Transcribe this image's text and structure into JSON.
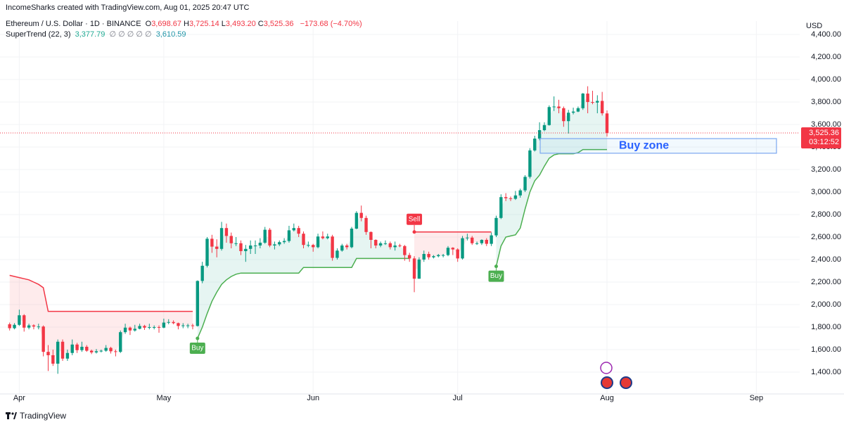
{
  "header": {
    "attribution": "IncomeSharks created with TradingView.com, Aug 01, 2025 20:47 UTC",
    "symbol": "Ethereum / U.S. Dollar · 1D · BINANCE",
    "ohlc": [
      {
        "key": "O",
        "value": "3,698.67"
      },
      {
        "key": "H",
        "value": "3,725.14"
      },
      {
        "key": "L",
        "value": "3,493.20"
      },
      {
        "key": "C",
        "value": "3,525.36"
      }
    ],
    "change": "−173.68 (−4.70%)",
    "indicator": "SuperTrend (22, 3)",
    "indicator_values": [
      "3,377.79",
      "∅ ∅ ∅ ∅ ∅",
      "3,610.59"
    ]
  },
  "chart_data": {
    "type": "candlestick",
    "currency": "USD",
    "up_color": "#089981",
    "down_color": "#f23645",
    "open": [
      1825,
      1790,
      1820,
      1905,
      1795,
      1815,
      1805,
      1805,
      1580,
      1550,
      1475,
      1670,
      1520,
      1570,
      1645,
      1595,
      1625,
      1590,
      1575,
      1585,
      1590,
      1615,
      1585,
      1580,
      1755,
      1795,
      1770,
      1785,
      1810,
      1795,
      1800,
      1800,
      1795,
      1840,
      1845,
      1835,
      1810,
      1815,
      1815,
      1810,
      2210,
      2345,
      2585,
      2515,
      2495,
      2680,
      2610,
      2545,
      2545,
      2475,
      2495,
      2525,
      2525,
      2550,
      2665,
      2525,
      2535,
      2555,
      2565,
      2660,
      2680,
      2630,
      2530,
      2530,
      2510,
      2605,
      2590,
      2605,
      2415,
      2480,
      2525,
      2510,
      2675,
      2815,
      2770,
      2645,
      2575,
      2525,
      2545,
      2545,
      2510,
      2525,
      2520,
      2440,
      2410,
      2230,
      2400,
      2450,
      2420,
      2430,
      2440,
      2440,
      2505,
      2490,
      2410,
      2590,
      2595,
      2545,
      2545,
      2575,
      2540,
      2615,
      2770,
      2955,
      2945,
      2940,
      2970,
      3015,
      3135,
      3370,
      3475,
      3550,
      3595,
      3755,
      3760,
      3745,
      3630,
      3705,
      3715,
      3745,
      3875,
      3800,
      3795,
      3810,
      3698.67
    ],
    "high": [
      1840,
      1835,
      1955,
      1915,
      1830,
      1825,
      1830,
      1815,
      1640,
      1600,
      1690,
      1690,
      1600,
      1690,
      1660,
      1670,
      1640,
      1600,
      1605,
      1600,
      1640,
      1625,
      1600,
      1770,
      1830,
      1805,
      1820,
      1830,
      1820,
      1830,
      1815,
      1815,
      1875,
      1870,
      1860,
      1840,
      1835,
      1830,
      1830,
      2215,
      2380,
      2600,
      2620,
      2580,
      2735,
      2720,
      2640,
      2600,
      2570,
      2530,
      2570,
      2570,
      2590,
      2690,
      2680,
      2560,
      2570,
      2590,
      2700,
      2720,
      2700,
      2650,
      2560,
      2540,
      2630,
      2650,
      2630,
      2620,
      2500,
      2540,
      2540,
      2690,
      2830,
      2880,
      2790,
      2650,
      2580,
      2560,
      2570,
      2560,
      2560,
      2540,
      2530,
      2460,
      2430,
      2420,
      2480,
      2470,
      2440,
      2450,
      2450,
      2520,
      2510,
      2500,
      2610,
      2630,
      2610,
      2560,
      2580,
      2590,
      2640,
      2790,
      2980,
      2990,
      2960,
      3010,
      3030,
      3150,
      3390,
      3500,
      3620,
      3620,
      3770,
      3850,
      3820,
      3760,
      3730,
      3750,
      3760,
      3880,
      3940,
      3900,
      3860,
      3890,
      3725.14
    ],
    "low": [
      1770,
      1780,
      1810,
      1760,
      1780,
      1780,
      1780,
      1540,
      1410,
      1455,
      1385,
      1500,
      1500,
      1550,
      1570,
      1580,
      1580,
      1560,
      1565,
      1575,
      1580,
      1565,
      1540,
      1570,
      1740,
      1730,
      1760,
      1780,
      1775,
      1780,
      1780,
      1750,
      1790,
      1825,
      1825,
      1780,
      1790,
      1790,
      1780,
      1805,
      2190,
      2330,
      2460,
      2420,
      2480,
      2550,
      2500,
      2520,
      2440,
      2380,
      2450,
      2450,
      2500,
      2540,
      2510,
      2490,
      2520,
      2540,
      2550,
      2650,
      2600,
      2500,
      2510,
      2470,
      2500,
      2580,
      2580,
      2390,
      2400,
      2470,
      2490,
      2500,
      2670,
      2740,
      2620,
      2500,
      2500,
      2510,
      2530,
      2490,
      2480,
      2510,
      2390,
      2380,
      2110,
      2230,
      2380,
      2400,
      2410,
      2420,
      2420,
      2430,
      2440,
      2380,
      2400,
      2570,
      2530,
      2530,
      2530,
      2520,
      2520,
      2600,
      2760,
      2920,
      2920,
      2930,
      2950,
      3000,
      3120,
      3360,
      3460,
      3540,
      3590,
      3720,
      3700,
      3580,
      3520,
      3690,
      3710,
      3730,
      3700,
      3780,
      3700,
      3680,
      3493.2
    ],
    "close": [
      1790,
      1820,
      1905,
      1795,
      1815,
      1805,
      1805,
      1580,
      1550,
      1475,
      1670,
      1520,
      1570,
      1645,
      1595,
      1625,
      1590,
      1575,
      1585,
      1590,
      1615,
      1585,
      1580,
      1755,
      1795,
      1770,
      1785,
      1810,
      1795,
      1800,
      1800,
      1795,
      1840,
      1845,
      1835,
      1810,
      1815,
      1815,
      1810,
      2210,
      2345,
      2585,
      2515,
      2495,
      2680,
      2610,
      2545,
      2545,
      2475,
      2495,
      2525,
      2525,
      2550,
      2665,
      2525,
      2535,
      2555,
      2565,
      2660,
      2680,
      2630,
      2530,
      2530,
      2510,
      2605,
      2590,
      2605,
      2415,
      2480,
      2525,
      2510,
      2675,
      2815,
      2770,
      2645,
      2575,
      2525,
      2545,
      2545,
      2510,
      2525,
      2520,
      2440,
      2410,
      2230,
      2400,
      2450,
      2420,
      2430,
      2440,
      2440,
      2505,
      2490,
      2410,
      2590,
      2595,
      2545,
      2545,
      2575,
      2540,
      2615,
      2770,
      2955,
      2945,
      2940,
      2970,
      3015,
      3135,
      3370,
      3475,
      3550,
      3595,
      3755,
      3760,
      3745,
      3630,
      3705,
      3715,
      3745,
      3875,
      3800,
      3795,
      3810,
      3700,
      3525.36
    ],
    "series": [
      {
        "color": "#f23645",
        "fill": "rgba(242,54,69,0.10)",
        "values": [
          2260,
          2250,
          2240,
          2230,
          2220,
          2200,
          2180,
          2150,
          1940,
          1940,
          1940,
          1940,
          1940,
          1940,
          1940,
          1940,
          1940,
          1940,
          1940,
          1940,
          1940,
          1940,
          1940,
          1940,
          1940,
          1940,
          1940,
          1940,
          1940,
          1940,
          1940,
          1940,
          1940,
          1940,
          1940,
          1940,
          1940,
          1940,
          1940,
          null,
          null,
          null,
          null,
          null,
          null,
          null,
          null,
          null,
          null,
          null,
          null,
          null,
          null,
          null,
          null,
          null,
          null,
          null,
          null,
          null,
          null,
          null,
          null,
          null,
          null,
          null,
          null,
          null,
          null,
          null,
          null,
          null,
          null,
          null,
          null,
          null,
          null,
          null,
          null,
          null,
          null,
          null,
          null,
          null,
          2645,
          2645,
          2645,
          2645,
          2645,
          2645,
          2645,
          2645,
          2645,
          2645,
          2645,
          2645,
          2645,
          2645,
          2645,
          2645,
          2645,
          null,
          null,
          null,
          null,
          null,
          null,
          null,
          null,
          null,
          null,
          null,
          null,
          null,
          null,
          null,
          null,
          null,
          null,
          null,
          null,
          null,
          null,
          null,
          null
        ]
      },
      {
        "color": "#4caf50",
        "fill": "rgba(8,153,129,0.10)",
        "values": [
          null,
          null,
          null,
          null,
          null,
          null,
          null,
          null,
          null,
          null,
          null,
          null,
          null,
          null,
          null,
          null,
          null,
          null,
          null,
          null,
          null,
          null,
          null,
          null,
          null,
          null,
          null,
          null,
          null,
          null,
          null,
          null,
          null,
          null,
          null,
          null,
          null,
          null,
          null,
          1700,
          1800,
          1920,
          2030,
          2110,
          2180,
          2220,
          2250,
          2270,
          2280,
          2280,
          2280,
          2280,
          2280,
          2280,
          2280,
          2280,
          2280,
          2280,
          2280,
          2280,
          2280,
          2330,
          2330,
          2330,
          2330,
          2330,
          2330,
          2330,
          2330,
          2330,
          2330,
          2330,
          2410,
          2410,
          2410,
          2410,
          2410,
          2410,
          2410,
          2410,
          2410,
          2410,
          2410,
          2410,
          null,
          null,
          null,
          null,
          null,
          null,
          null,
          null,
          null,
          null,
          null,
          null,
          null,
          null,
          null,
          null,
          null,
          2340,
          2520,
          2600,
          2610,
          2620,
          2680,
          2850,
          3000,
          3100,
          3150,
          3230,
          3300,
          3330,
          3340,
          3340,
          3340,
          3340,
          3350,
          3377.79,
          3377.79,
          3377.79,
          3377.79,
          3377.79,
          3377.79
        ]
      }
    ],
    "signals": [
      "Buy",
      "Sell",
      "Buy"
    ],
    "buy_zone": {
      "label": "Buy zone",
      "low": 3345,
      "high": 3475
    },
    "last_price_label": "3,525.36",
    "countdown": "03:12:52",
    "xlim": [
      -2,
      164
    ],
    "xticks": [
      {
        "value": 2,
        "label": "Apr"
      },
      {
        "value": 32,
        "label": "May"
      },
      {
        "value": 63,
        "label": "Jun"
      },
      {
        "value": 93,
        "label": "Jul"
      },
      {
        "value": 124,
        "label": "Aug"
      },
      {
        "value": 155,
        "label": "Sep"
      }
    ],
    "ylim": [
      1206,
      4519
    ],
    "yticks": [
      {
        "value": 1400,
        "label": "1,400.00"
      },
      {
        "value": 1600,
        "label": "1,600.00"
      },
      {
        "value": 1800,
        "label": "1,800.00"
      },
      {
        "value": 2000,
        "label": "2,000.00"
      },
      {
        "value": 2200,
        "label": "2,200.00"
      },
      {
        "value": 2400,
        "label": "2,400.00"
      },
      {
        "value": 2600,
        "label": "2,600.00"
      },
      {
        "value": 2800,
        "label": "2,800.00"
      },
      {
        "value": 3000,
        "label": "3,000.00"
      },
      {
        "value": 3200,
        "label": "3,200.00"
      },
      {
        "value": 3400,
        "label": "3,400.00"
      },
      {
        "value": 3600,
        "label": "3,600.00"
      },
      {
        "value": 3800,
        "label": "3,800.00"
      },
      {
        "value": 4000,
        "label": "4,000.00"
      },
      {
        "value": 4200,
        "label": "4,200.00"
      },
      {
        "value": 4400,
        "label": "4,400.00"
      }
    ],
    "grid": true
  },
  "footer": {
    "brand": "TradingView"
  }
}
